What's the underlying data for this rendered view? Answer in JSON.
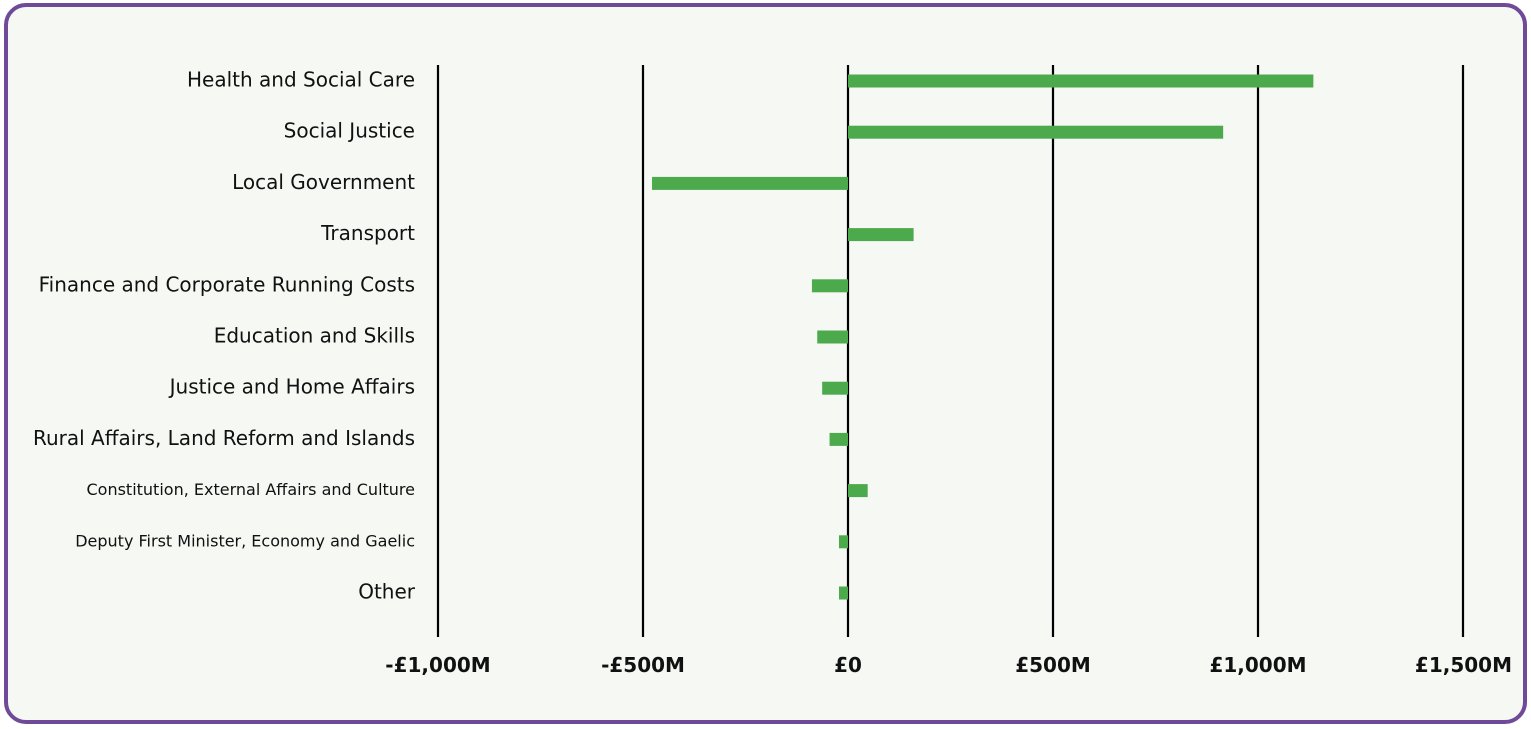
{
  "chart_data": {
    "type": "bar",
    "orientation": "horizontal",
    "categories": [
      "Health and Social Care",
      "Social Justice",
      "Local Government",
      "Transport",
      "Finance and Corporate Running Costs",
      "Education and Skills",
      "Justice and Home Affairs",
      "Rural Affairs, Land Reform and Islands",
      "Constitution, External Affairs and Culture",
      "Deputy First Minister, Economy and Gaelic",
      "Other"
    ],
    "values": [
      1135,
      915,
      -478,
      160,
      -88,
      -75,
      -63,
      -45,
      48,
      -22,
      -22
    ],
    "xlim": [
      -1000,
      1500
    ],
    "xticks": [
      -1000,
      -500,
      0,
      500,
      1000,
      1500
    ],
    "xtick_labels": [
      "-£1,000M",
      "-£500M",
      "£0",
      "£500M",
      "£1,000M",
      "£1,500M"
    ],
    "grid": "vertical",
    "bar_color": "#4caa4c",
    "gridline_color": "#000000",
    "frame_color": "#6f4a98",
    "background_color": "#f6f8f4"
  }
}
